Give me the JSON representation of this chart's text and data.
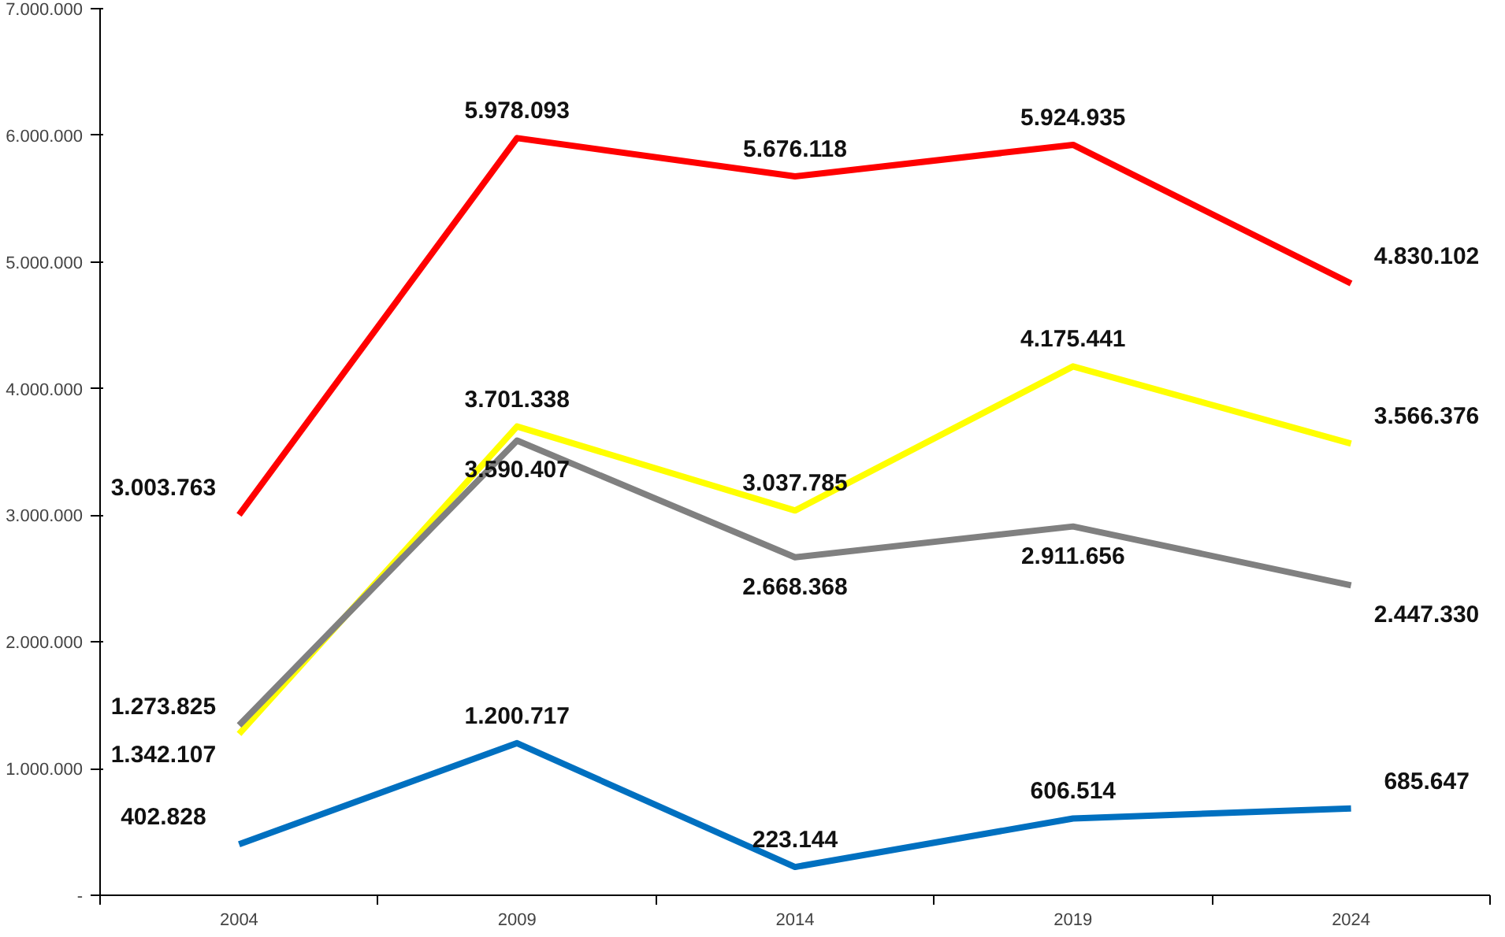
{
  "chart_data": {
    "type": "line",
    "categories": [
      "2004",
      "2009",
      "2014",
      "2019",
      "2024"
    ],
    "series": [
      {
        "color": "#ff0000",
        "values": [
          3003763,
          5978093,
          5676118,
          5924935,
          4830102
        ],
        "value_labels": [
          "3.003.763",
          "5.978.093",
          "5.676.118",
          "5.924.935",
          "4.830.102"
        ]
      },
      {
        "color": "#ffff00",
        "values": [
          1273825,
          3701338,
          3037785,
          4175441,
          3566376
        ],
        "value_labels": [
          "1.273.825",
          "3.701.338",
          "3.037.785",
          "4.175.441",
          "3.566.376"
        ]
      },
      {
        "color": "#808080",
        "values": [
          1342107,
          3590407,
          2668368,
          2911656,
          2447330
        ],
        "value_labels": [
          "1.342.107",
          "3.590.407",
          "2.668.368",
          "2.911.656",
          "2.447.330"
        ]
      },
      {
        "color": "#0070c0",
        "values": [
          402828,
          1200717,
          223144,
          606514,
          685647
        ],
        "value_labels": [
          "402.828",
          "1.200.717",
          "223.144",
          "606.514",
          "685.647"
        ]
      }
    ],
    "ylim": [
      0,
      7000000
    ],
    "yticks": [
      {
        "value": 0,
        "label": "-"
      },
      {
        "value": 1000000,
        "label": "1.000.000"
      },
      {
        "value": 2000000,
        "label": "2.000.000"
      },
      {
        "value": 3000000,
        "label": "3.000.000"
      },
      {
        "value": 4000000,
        "label": "4.000.000"
      },
      {
        "value": 5000000,
        "label": "5.000.000"
      },
      {
        "value": 6000000,
        "label": "6.000.000"
      },
      {
        "value": 7000000,
        "label": "7.000.000"
      }
    ],
    "grid": false,
    "marker": "none",
    "line_style": "solid"
  }
}
